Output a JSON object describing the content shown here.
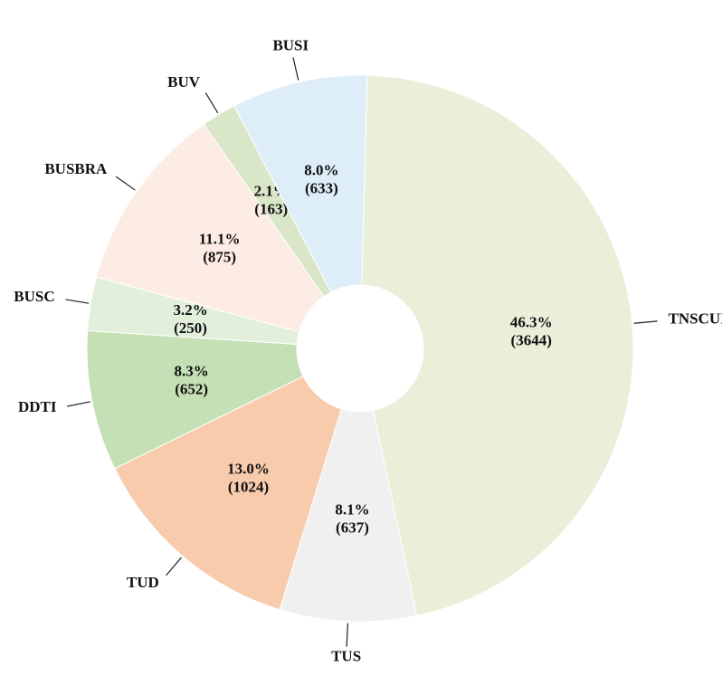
{
  "chart_data": {
    "type": "donut",
    "categories": [
      "TNSCUI",
      "TUS",
      "TUD",
      "DDTI",
      "BUSC",
      "BUSBRA",
      "BUV",
      "BUSI"
    ],
    "values": [
      3644,
      637,
      1024,
      652,
      250,
      875,
      163,
      633
    ],
    "value_labels": [
      "(3644)",
      "(637)",
      "(1024)",
      "(652)",
      "(250)",
      "(875)",
      "(163)",
      "(633)"
    ],
    "percent_labels": [
      "46.3%",
      "8.1%",
      "13.0%",
      "8.3%",
      "3.2%",
      "11.1%",
      "2.1%",
      "8.0%"
    ],
    "colors": [
      "#e9efd8",
      "#f0f0f0",
      "#f8cbad",
      "#c5e0b4",
      "#e2efda",
      "#fdece4",
      "#d9e6c8",
      "#ddeef8"
    ]
  }
}
